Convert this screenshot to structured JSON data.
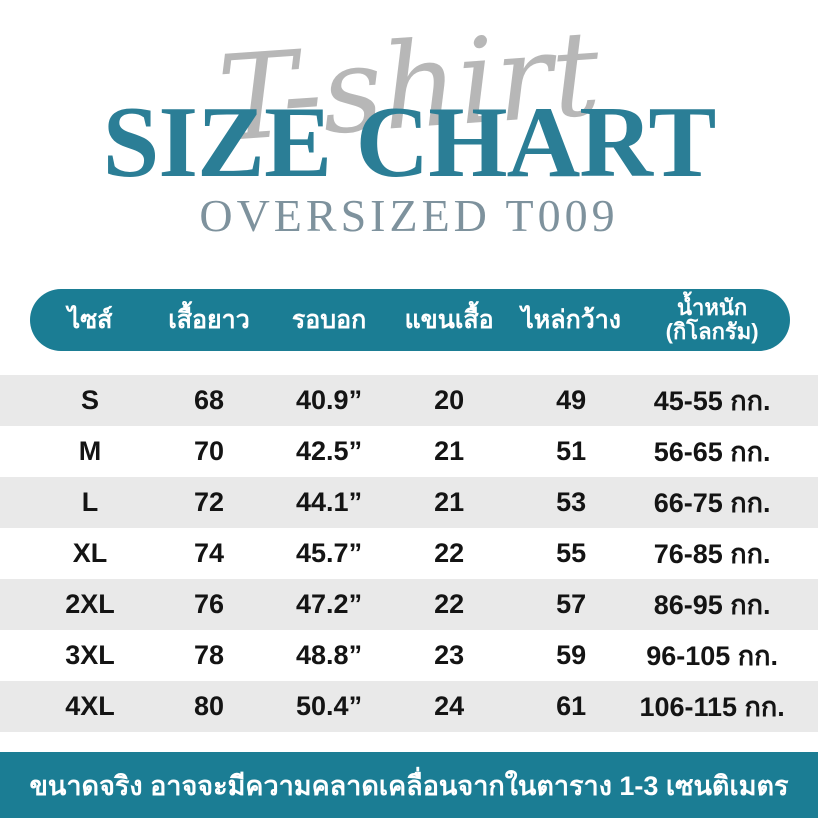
{
  "header": {
    "script_text": "T-shirt",
    "title": "SIZE CHART",
    "subtitle": "OVERSIZED T009"
  },
  "table_header": {
    "size": "ไซส์",
    "shirt_length": "เสื้อยาว",
    "chest": "รอบอก",
    "sleeve": "แขนเสื้อ",
    "shoulder": "ไหล่กว้าง",
    "weight_line1": "น้ำหนัก",
    "weight_line2": "(กิโลกรัม)"
  },
  "chart_data": {
    "type": "table",
    "title": "SIZE CHART",
    "subtitle": "OVERSIZED T009",
    "columns": [
      "ไซส์",
      "เสื้อยาว",
      "รอบอก",
      "แขนเสื้อ",
      "ไหล่กว้าง",
      "น้ำหนัก (กิโลกรัม)"
    ],
    "rows": [
      [
        "S",
        "68",
        "40.9”",
        "20",
        "49",
        "45-55 กก."
      ],
      [
        "M",
        "70",
        "42.5”",
        "21",
        "51",
        "56-65 กก."
      ],
      [
        "L",
        "72",
        "44.1”",
        "21",
        "53",
        "66-75 กก."
      ],
      [
        "XL",
        "74",
        "45.7”",
        "22",
        "55",
        "76-85 กก."
      ],
      [
        "2XL",
        "76",
        "47.2”",
        "22",
        "57",
        "86-95 กก."
      ],
      [
        "3XL",
        "78",
        "48.8”",
        "23",
        "59",
        "96-105 กก."
      ],
      [
        "4XL",
        "80",
        "50.4”",
        "24",
        "61",
        "106-115 กก."
      ]
    ],
    "footnote": "ขนาดจริง อาจจะมีความคลาดเคลื่อนจากในตาราง 1-3 เซนติเมตร"
  },
  "colors": {
    "teal_bar": "#1b7d94",
    "title_teal": "#2b7e96",
    "subtitle_gray": "#7e929d",
    "script_gray": "#a6a6a6",
    "stripe_gray": "#e9e9e9",
    "row_text": "#141414",
    "header_text": "#ffffff"
  }
}
